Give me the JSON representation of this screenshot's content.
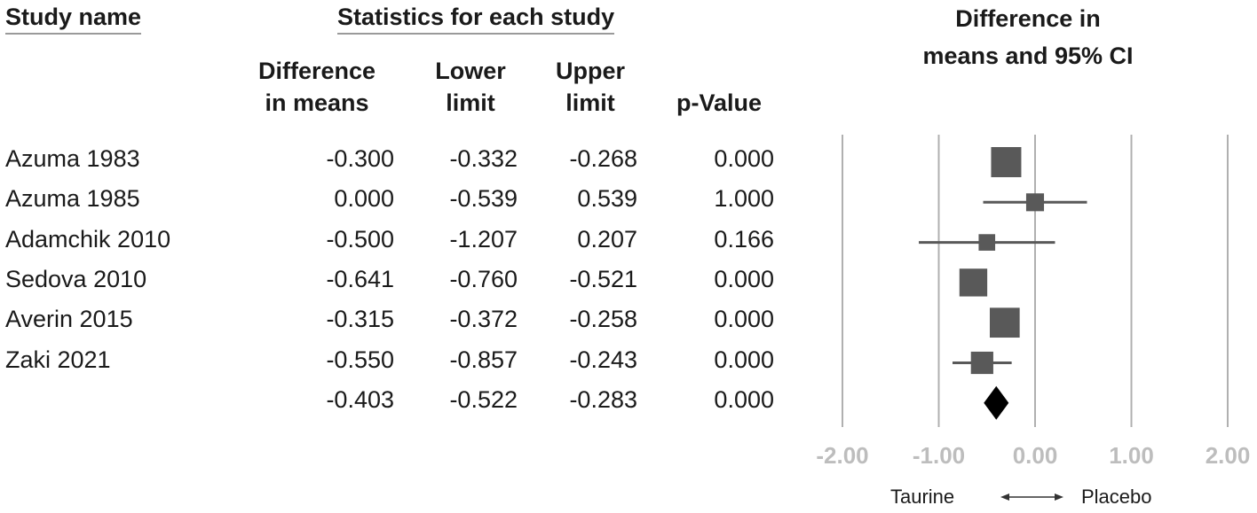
{
  "header": {
    "study_name": "Study name",
    "statistics": "Statistics for each study",
    "forest_title_line1": "Difference in",
    "forest_title_line2": "means and 95% CI"
  },
  "columns": {
    "diff": [
      "Difference",
      "in means"
    ],
    "lower": [
      "Lower",
      "limit"
    ],
    "upper": [
      "Upper",
      "limit"
    ],
    "p": [
      "",
      "p-Value"
    ]
  },
  "chart_data": {
    "type": "forest",
    "xlim": [
      -2.0,
      2.0
    ],
    "ticks": [
      "-2.00",
      "-1.00",
      "0.00",
      "1.00",
      "2.00"
    ],
    "tick_values": [
      -2,
      -1,
      0,
      1,
      2
    ],
    "studies": [
      {
        "name": "Azuma 1983",
        "diff": "-0.300",
        "lower": "-0.332",
        "upper": "-0.268",
        "p": "0.000",
        "est": -0.3,
        "lo": -0.332,
        "hi": -0.268,
        "weight": 1.0
      },
      {
        "name": "Azuma 1985",
        "diff": "0.000",
        "lower": "-0.539",
        "upper": "0.539",
        "p": "1.000",
        "est": 0.0,
        "lo": -0.539,
        "hi": 0.539,
        "weight": 0.35
      },
      {
        "name": "Adamchik 2010",
        "diff": "-0.500",
        "lower": "-1.207",
        "upper": "0.207",
        "p": "0.166",
        "est": -0.5,
        "lo": -1.207,
        "hi": 0.207,
        "weight": 0.3
      },
      {
        "name": "Sedova 2010",
        "diff": "-0.641",
        "lower": "-0.760",
        "upper": "-0.521",
        "p": "0.000",
        "est": -0.641,
        "lo": -0.76,
        "hi": -0.521,
        "weight": 0.85
      },
      {
        "name": "Averin 2015",
        "diff": "-0.315",
        "lower": "-0.372",
        "upper": "-0.258",
        "p": "0.000",
        "est": -0.315,
        "lo": -0.372,
        "hi": -0.258,
        "weight": 0.98
      },
      {
        "name": "Zaki 2021",
        "diff": "-0.550",
        "lower": "-0.857",
        "upper": "-0.243",
        "p": "0.000",
        "est": -0.55,
        "lo": -0.857,
        "hi": -0.243,
        "weight": 0.55
      }
    ],
    "summary": {
      "name": "",
      "diff": "-0.403",
      "lower": "-0.522",
      "upper": "-0.283",
      "p": "0.000",
      "est": -0.403,
      "lo": -0.522,
      "hi": -0.283
    },
    "direction_left": "Taurine",
    "direction_right": "Placebo",
    "colors": {
      "marker": "#595959",
      "summary": "#000000",
      "gridline": "#b0b0b0",
      "tick": "#bdbdbd"
    }
  }
}
